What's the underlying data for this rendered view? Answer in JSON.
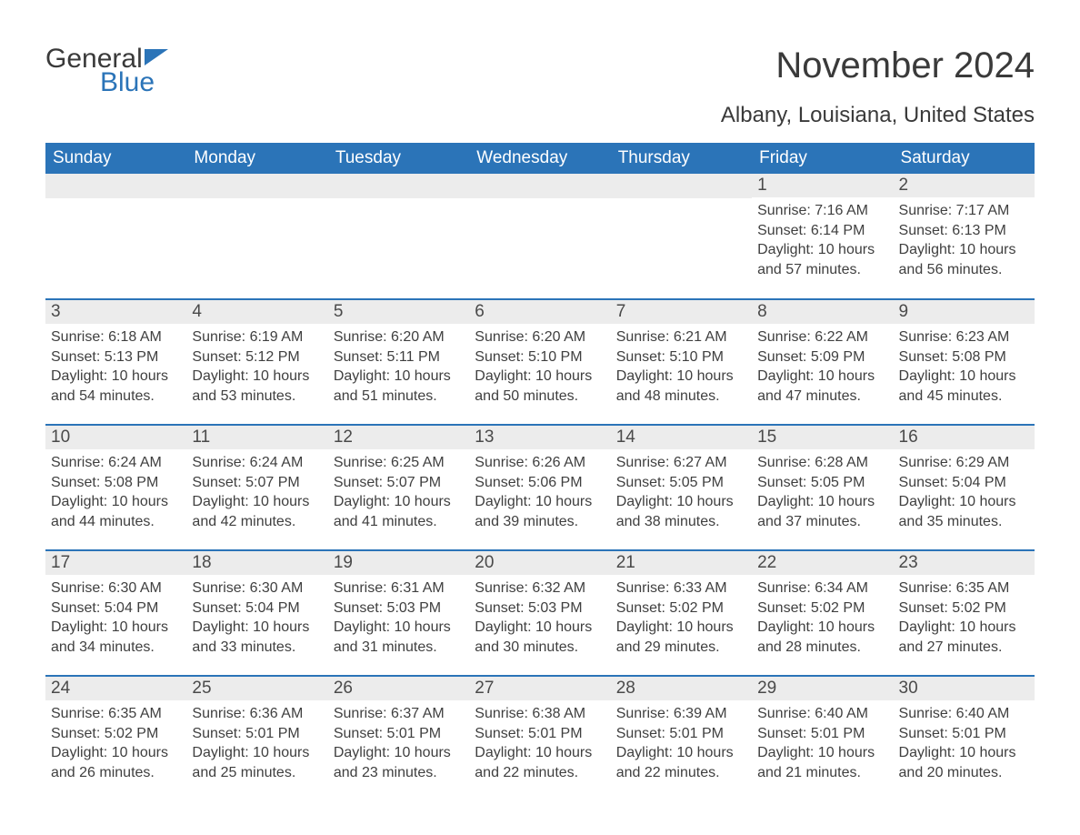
{
  "brand": {
    "word1": "General",
    "word2": "Blue"
  },
  "title": "November 2024",
  "location": "Albany, Louisiana, United States",
  "colors": {
    "accent": "#2b74b8",
    "header_bg": "#2b74b8",
    "header_text": "#ffffff",
    "daynum_bg": "#ececec",
    "text": "#3a3a3a",
    "body_text": "#3f3f3f",
    "page_bg": "#ffffff"
  },
  "font": {
    "family": "Arial",
    "title_size_pt": 30,
    "header_size_pt": 14,
    "body_size_pt": 12
  },
  "dayNames": [
    "Sunday",
    "Monday",
    "Tuesday",
    "Wednesday",
    "Thursday",
    "Friday",
    "Saturday"
  ],
  "weeks": [
    [
      null,
      null,
      null,
      null,
      null,
      {
        "n": "1",
        "sunrise": "Sunrise: 7:16 AM",
        "sunset": "Sunset: 6:14 PM",
        "daylight": "Daylight: 10 hours and 57 minutes."
      },
      {
        "n": "2",
        "sunrise": "Sunrise: 7:17 AM",
        "sunset": "Sunset: 6:13 PM",
        "daylight": "Daylight: 10 hours and 56 minutes."
      }
    ],
    [
      {
        "n": "3",
        "sunrise": "Sunrise: 6:18 AM",
        "sunset": "Sunset: 5:13 PM",
        "daylight": "Daylight: 10 hours and 54 minutes."
      },
      {
        "n": "4",
        "sunrise": "Sunrise: 6:19 AM",
        "sunset": "Sunset: 5:12 PM",
        "daylight": "Daylight: 10 hours and 53 minutes."
      },
      {
        "n": "5",
        "sunrise": "Sunrise: 6:20 AM",
        "sunset": "Sunset: 5:11 PM",
        "daylight": "Daylight: 10 hours and 51 minutes."
      },
      {
        "n": "6",
        "sunrise": "Sunrise: 6:20 AM",
        "sunset": "Sunset: 5:10 PM",
        "daylight": "Daylight: 10 hours and 50 minutes."
      },
      {
        "n": "7",
        "sunrise": "Sunrise: 6:21 AM",
        "sunset": "Sunset: 5:10 PM",
        "daylight": "Daylight: 10 hours and 48 minutes."
      },
      {
        "n": "8",
        "sunrise": "Sunrise: 6:22 AM",
        "sunset": "Sunset: 5:09 PM",
        "daylight": "Daylight: 10 hours and 47 minutes."
      },
      {
        "n": "9",
        "sunrise": "Sunrise: 6:23 AM",
        "sunset": "Sunset: 5:08 PM",
        "daylight": "Daylight: 10 hours and 45 minutes."
      }
    ],
    [
      {
        "n": "10",
        "sunrise": "Sunrise: 6:24 AM",
        "sunset": "Sunset: 5:08 PM",
        "daylight": "Daylight: 10 hours and 44 minutes."
      },
      {
        "n": "11",
        "sunrise": "Sunrise: 6:24 AM",
        "sunset": "Sunset: 5:07 PM",
        "daylight": "Daylight: 10 hours and 42 minutes."
      },
      {
        "n": "12",
        "sunrise": "Sunrise: 6:25 AM",
        "sunset": "Sunset: 5:07 PM",
        "daylight": "Daylight: 10 hours and 41 minutes."
      },
      {
        "n": "13",
        "sunrise": "Sunrise: 6:26 AM",
        "sunset": "Sunset: 5:06 PM",
        "daylight": "Daylight: 10 hours and 39 minutes."
      },
      {
        "n": "14",
        "sunrise": "Sunrise: 6:27 AM",
        "sunset": "Sunset: 5:05 PM",
        "daylight": "Daylight: 10 hours and 38 minutes."
      },
      {
        "n": "15",
        "sunrise": "Sunrise: 6:28 AM",
        "sunset": "Sunset: 5:05 PM",
        "daylight": "Daylight: 10 hours and 37 minutes."
      },
      {
        "n": "16",
        "sunrise": "Sunrise: 6:29 AM",
        "sunset": "Sunset: 5:04 PM",
        "daylight": "Daylight: 10 hours and 35 minutes."
      }
    ],
    [
      {
        "n": "17",
        "sunrise": "Sunrise: 6:30 AM",
        "sunset": "Sunset: 5:04 PM",
        "daylight": "Daylight: 10 hours and 34 minutes."
      },
      {
        "n": "18",
        "sunrise": "Sunrise: 6:30 AM",
        "sunset": "Sunset: 5:04 PM",
        "daylight": "Daylight: 10 hours and 33 minutes."
      },
      {
        "n": "19",
        "sunrise": "Sunrise: 6:31 AM",
        "sunset": "Sunset: 5:03 PM",
        "daylight": "Daylight: 10 hours and 31 minutes."
      },
      {
        "n": "20",
        "sunrise": "Sunrise: 6:32 AM",
        "sunset": "Sunset: 5:03 PM",
        "daylight": "Daylight: 10 hours and 30 minutes."
      },
      {
        "n": "21",
        "sunrise": "Sunrise: 6:33 AM",
        "sunset": "Sunset: 5:02 PM",
        "daylight": "Daylight: 10 hours and 29 minutes."
      },
      {
        "n": "22",
        "sunrise": "Sunrise: 6:34 AM",
        "sunset": "Sunset: 5:02 PM",
        "daylight": "Daylight: 10 hours and 28 minutes."
      },
      {
        "n": "23",
        "sunrise": "Sunrise: 6:35 AM",
        "sunset": "Sunset: 5:02 PM",
        "daylight": "Daylight: 10 hours and 27 minutes."
      }
    ],
    [
      {
        "n": "24",
        "sunrise": "Sunrise: 6:35 AM",
        "sunset": "Sunset: 5:02 PM",
        "daylight": "Daylight: 10 hours and 26 minutes."
      },
      {
        "n": "25",
        "sunrise": "Sunrise: 6:36 AM",
        "sunset": "Sunset: 5:01 PM",
        "daylight": "Daylight: 10 hours and 25 minutes."
      },
      {
        "n": "26",
        "sunrise": "Sunrise: 6:37 AM",
        "sunset": "Sunset: 5:01 PM",
        "daylight": "Daylight: 10 hours and 23 minutes."
      },
      {
        "n": "27",
        "sunrise": "Sunrise: 6:38 AM",
        "sunset": "Sunset: 5:01 PM",
        "daylight": "Daylight: 10 hours and 22 minutes."
      },
      {
        "n": "28",
        "sunrise": "Sunrise: 6:39 AM",
        "sunset": "Sunset: 5:01 PM",
        "daylight": "Daylight: 10 hours and 22 minutes."
      },
      {
        "n": "29",
        "sunrise": "Sunrise: 6:40 AM",
        "sunset": "Sunset: 5:01 PM",
        "daylight": "Daylight: 10 hours and 21 minutes."
      },
      {
        "n": "30",
        "sunrise": "Sunrise: 6:40 AM",
        "sunset": "Sunset: 5:01 PM",
        "daylight": "Daylight: 10 hours and 20 minutes."
      }
    ]
  ]
}
